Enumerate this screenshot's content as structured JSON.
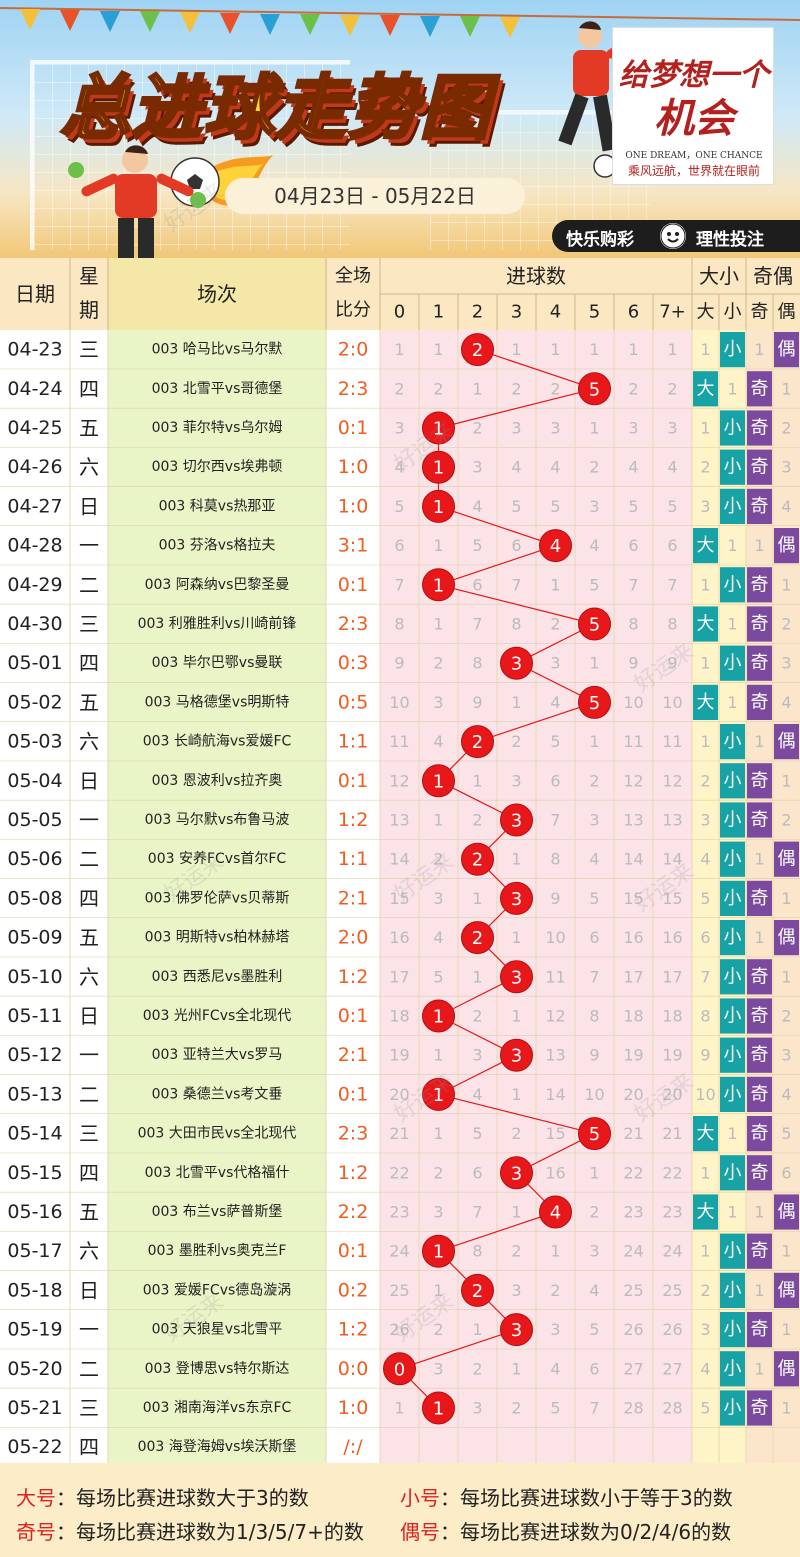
{
  "header": {
    "title": "总进球走势图",
    "date_range": "04月23日 - 05月22日",
    "promo_line1": "给梦想一个",
    "promo_line2": "机会",
    "promo_en": "ONE DREAM，ONE CHANCE",
    "promo_cn": "乘风远航，世界就在眼前",
    "slogan_left": "快乐购彩",
    "slogan_right": "理性投注",
    "watermark": "好运来"
  },
  "colors": {
    "ball_red": "#e8171a",
    "line_red": "#e8171a",
    "big_teal": "#17a3a6",
    "odd_purple": "#7b4a9e",
    "even_purple": "#7b4a9e",
    "match_green": "#e9f5c7",
    "score_orange": "#f25c1e",
    "grid_pink": "#fbe3e8",
    "header_bg": "#fbe8c2"
  },
  "table_headers": {
    "date": "日期",
    "weekday": "星期",
    "match": "场次",
    "score": "全场比分",
    "goals_group": "进球数",
    "goal_cols": [
      "0",
      "1",
      "2",
      "3",
      "4",
      "5",
      "6",
      "7+"
    ],
    "bigsmall_group": "大小",
    "bigsmall_cols": [
      "大",
      "小"
    ],
    "oddeven_group": "奇偶",
    "oddeven_cols": [
      "奇",
      "偶"
    ]
  },
  "chart_data": {
    "type": "table",
    "title": "总进球走势图",
    "columns": [
      "日期",
      "星期",
      "场次",
      "全场比分",
      "0",
      "1",
      "2",
      "3",
      "4",
      "5",
      "6",
      "7+",
      "大",
      "小",
      "奇",
      "偶"
    ],
    "rows": [
      {
        "date": "04-23",
        "weekday": "三",
        "match": "003 哈马比vs马尔默",
        "score": "2:0",
        "goals": 2,
        "omit": [
          1,
          1,
          null,
          1,
          1,
          1,
          1,
          1
        ],
        "bs": "小",
        "oe": "偶",
        "omit_bs": [
          1,
          null
        ],
        "omit_oe": [
          1,
          null
        ]
      },
      {
        "date": "04-24",
        "weekday": "四",
        "match": "003 北雪平vs哥德堡",
        "score": "2:3",
        "goals": 5,
        "omit": [
          2,
          2,
          1,
          2,
          2,
          null,
          2,
          2
        ],
        "bs": "大",
        "oe": "奇",
        "omit_bs": [
          null,
          1
        ],
        "omit_oe": [
          null,
          1
        ]
      },
      {
        "date": "04-25",
        "weekday": "五",
        "match": "003 菲尔特vs乌尔姆",
        "score": "0:1",
        "goals": 1,
        "omit": [
          3,
          null,
          2,
          3,
          3,
          1,
          3,
          3
        ],
        "bs": "小",
        "oe": "奇",
        "omit_bs": [
          1,
          null
        ],
        "omit_oe": [
          null,
          2
        ]
      },
      {
        "date": "04-26",
        "weekday": "六",
        "match": "003 切尔西vs埃弗顿",
        "score": "1:0",
        "goals": 1,
        "omit": [
          4,
          null,
          3,
          4,
          4,
          2,
          4,
          4
        ],
        "bs": "小",
        "oe": "奇",
        "omit_bs": [
          2,
          null
        ],
        "omit_oe": [
          null,
          3
        ]
      },
      {
        "date": "04-27",
        "weekday": "日",
        "match": "003 科莫vs热那亚",
        "score": "1:0",
        "goals": 1,
        "omit": [
          5,
          null,
          4,
          5,
          5,
          3,
          5,
          5
        ],
        "bs": "小",
        "oe": "奇",
        "omit_bs": [
          3,
          null
        ],
        "omit_oe": [
          null,
          4
        ]
      },
      {
        "date": "04-28",
        "weekday": "一",
        "match": "003 芬洛vs格拉夫",
        "score": "3:1",
        "goals": 4,
        "omit": [
          6,
          1,
          5,
          6,
          null,
          4,
          6,
          6
        ],
        "bs": "大",
        "oe": "偶",
        "omit_bs": [
          null,
          1
        ],
        "omit_oe": [
          1,
          null
        ]
      },
      {
        "date": "04-29",
        "weekday": "二",
        "match": "003 阿森纳vs巴黎圣曼",
        "score": "0:1",
        "goals": 1,
        "omit": [
          7,
          null,
          6,
          7,
          1,
          5,
          7,
          7
        ],
        "bs": "小",
        "oe": "奇",
        "omit_bs": [
          1,
          null
        ],
        "omit_oe": [
          null,
          1
        ]
      },
      {
        "date": "04-30",
        "weekday": "三",
        "match": "003 利雅胜利vs川崎前锋",
        "score": "2:3",
        "goals": 5,
        "omit": [
          8,
          1,
          7,
          8,
          2,
          null,
          8,
          8
        ],
        "bs": "大",
        "oe": "奇",
        "omit_bs": [
          null,
          1
        ],
        "omit_oe": [
          null,
          2
        ]
      },
      {
        "date": "05-01",
        "weekday": "四",
        "match": "003 毕尔巴鄂vs曼联",
        "score": "0:3",
        "goals": 3,
        "omit": [
          9,
          2,
          8,
          null,
          3,
          1,
          9,
          9
        ],
        "bs": "小",
        "oe": "奇",
        "omit_bs": [
          1,
          null
        ],
        "omit_oe": [
          null,
          3
        ]
      },
      {
        "date": "05-02",
        "weekday": "五",
        "match": "003 马格德堡vs明斯特",
        "score": "0:5",
        "goals": 5,
        "omit": [
          10,
          3,
          9,
          1,
          4,
          null,
          10,
          10
        ],
        "bs": "大",
        "oe": "奇",
        "omit_bs": [
          null,
          1
        ],
        "omit_oe": [
          null,
          4
        ]
      },
      {
        "date": "05-03",
        "weekday": "六",
        "match": "003 长崎航海vs爱媛FC",
        "score": "1:1",
        "goals": 2,
        "omit": [
          11,
          4,
          null,
          2,
          5,
          1,
          11,
          11
        ],
        "bs": "小",
        "oe": "偶",
        "omit_bs": [
          1,
          null
        ],
        "omit_oe": [
          1,
          null
        ]
      },
      {
        "date": "05-04",
        "weekday": "日",
        "match": "003 恩波利vs拉齐奥",
        "score": "0:1",
        "goals": 1,
        "omit": [
          12,
          null,
          1,
          3,
          6,
          2,
          12,
          12
        ],
        "bs": "小",
        "oe": "奇",
        "omit_bs": [
          2,
          null
        ],
        "omit_oe": [
          null,
          1
        ]
      },
      {
        "date": "05-05",
        "weekday": "一",
        "match": "003 马尔默vs布鲁马波",
        "score": "1:2",
        "goals": 3,
        "omit": [
          13,
          1,
          2,
          null,
          7,
          3,
          13,
          13
        ],
        "bs": "小",
        "oe": "奇",
        "omit_bs": [
          3,
          null
        ],
        "omit_oe": [
          null,
          2
        ]
      },
      {
        "date": "05-06",
        "weekday": "二",
        "match": "003 安养FCvs首尔FC",
        "score": "1:1",
        "goals": 2,
        "omit": [
          14,
          2,
          null,
          1,
          8,
          4,
          14,
          14
        ],
        "bs": "小",
        "oe": "偶",
        "omit_bs": [
          4,
          null
        ],
        "omit_oe": [
          1,
          null
        ]
      },
      {
        "date": "05-08",
        "weekday": "四",
        "match": "003 佛罗伦萨vs贝蒂斯",
        "score": "2:1",
        "goals": 3,
        "omit": [
          15,
          3,
          1,
          null,
          9,
          5,
          15,
          15
        ],
        "bs": "小",
        "oe": "奇",
        "omit_bs": [
          5,
          null
        ],
        "omit_oe": [
          null,
          1
        ]
      },
      {
        "date": "05-09",
        "weekday": "五",
        "match": "003 明斯特vs柏林赫塔",
        "score": "2:0",
        "goals": 2,
        "omit": [
          16,
          4,
          null,
          1,
          10,
          6,
          16,
          16
        ],
        "bs": "小",
        "oe": "偶",
        "omit_bs": [
          6,
          null
        ],
        "omit_oe": [
          1,
          null
        ]
      },
      {
        "date": "05-10",
        "weekday": "六",
        "match": "003 西悉尼vs墨胜利",
        "score": "1:2",
        "goals": 3,
        "omit": [
          17,
          5,
          1,
          null,
          11,
          7,
          17,
          17
        ],
        "bs": "小",
        "oe": "奇",
        "omit_bs": [
          7,
          null
        ],
        "omit_oe": [
          null,
          1
        ]
      },
      {
        "date": "05-11",
        "weekday": "日",
        "match": "003 光州FCvs全北现代",
        "score": "0:1",
        "goals": 1,
        "omit": [
          18,
          null,
          2,
          1,
          12,
          8,
          18,
          18
        ],
        "bs": "小",
        "oe": "奇",
        "omit_bs": [
          8,
          null
        ],
        "omit_oe": [
          null,
          2
        ]
      },
      {
        "date": "05-12",
        "weekday": "一",
        "match": "003 亚特兰大vs罗马",
        "score": "2:1",
        "goals": 3,
        "omit": [
          19,
          1,
          3,
          null,
          13,
          9,
          19,
          19
        ],
        "bs": "小",
        "oe": "奇",
        "omit_bs": [
          9,
          null
        ],
        "omit_oe": [
          null,
          3
        ]
      },
      {
        "date": "05-13",
        "weekday": "二",
        "match": "003 桑德兰vs考文垂",
        "score": "0:1",
        "goals": 1,
        "omit": [
          20,
          null,
          4,
          1,
          14,
          10,
          20,
          20
        ],
        "bs": "小",
        "oe": "奇",
        "omit_bs": [
          10,
          null
        ],
        "omit_oe": [
          null,
          4
        ]
      },
      {
        "date": "05-14",
        "weekday": "三",
        "match": "003 大田市民vs全北现代",
        "score": "2:3",
        "goals": 5,
        "omit": [
          21,
          1,
          5,
          2,
          15,
          null,
          21,
          21
        ],
        "bs": "大",
        "oe": "奇",
        "omit_bs": [
          null,
          1
        ],
        "omit_oe": [
          null,
          5
        ]
      },
      {
        "date": "05-15",
        "weekday": "四",
        "match": "003 北雪平vs代格福什",
        "score": "1:2",
        "goals": 3,
        "omit": [
          22,
          2,
          6,
          null,
          16,
          1,
          22,
          22
        ],
        "bs": "小",
        "oe": "奇",
        "omit_bs": [
          1,
          null
        ],
        "omit_oe": [
          null,
          6
        ]
      },
      {
        "date": "05-16",
        "weekday": "五",
        "match": "003 布兰vs萨普斯堡",
        "score": "2:2",
        "goals": 4,
        "omit": [
          23,
          3,
          7,
          1,
          null,
          2,
          23,
          23
        ],
        "bs": "大",
        "oe": "偶",
        "omit_bs": [
          null,
          1
        ],
        "omit_oe": [
          1,
          null
        ]
      },
      {
        "date": "05-17",
        "weekday": "六",
        "match": "003 墨胜利vs奥克兰F",
        "score": "0:1",
        "goals": 1,
        "omit": [
          24,
          null,
          8,
          2,
          1,
          3,
          24,
          24
        ],
        "bs": "小",
        "oe": "奇",
        "omit_bs": [
          1,
          null
        ],
        "omit_oe": [
          null,
          1
        ]
      },
      {
        "date": "05-18",
        "weekday": "日",
        "match": "003 爱媛FCvs德岛漩涡",
        "score": "0:2",
        "goals": 2,
        "omit": [
          25,
          1,
          null,
          3,
          2,
          4,
          25,
          25
        ],
        "bs": "小",
        "oe": "偶",
        "omit_bs": [
          2,
          null
        ],
        "omit_oe": [
          1,
          null
        ]
      },
      {
        "date": "05-19",
        "weekday": "一",
        "match": "003 天狼星vs北雪平",
        "score": "1:2",
        "goals": 3,
        "omit": [
          26,
          2,
          1,
          null,
          3,
          5,
          26,
          26
        ],
        "bs": "小",
        "oe": "奇",
        "omit_bs": [
          3,
          null
        ],
        "omit_oe": [
          null,
          1
        ]
      },
      {
        "date": "05-20",
        "weekday": "二",
        "match": "003 登博思vs特尔斯达",
        "score": "0:0",
        "goals": 0,
        "omit": [
          null,
          3,
          2,
          1,
          4,
          6,
          27,
          27
        ],
        "bs": "小",
        "oe": "偶",
        "omit_bs": [
          4,
          null
        ],
        "omit_oe": [
          1,
          null
        ]
      },
      {
        "date": "05-21",
        "weekday": "三",
        "match": "003 湘南海洋vs东京FC",
        "score": "1:0",
        "goals": 1,
        "omit": [
          1,
          null,
          3,
          2,
          5,
          7,
          28,
          28
        ],
        "bs": "小",
        "oe": "奇",
        "omit_bs": [
          5,
          null
        ],
        "omit_oe": [
          null,
          1
        ]
      },
      {
        "date": "05-22",
        "weekday": "四",
        "match": "003 海登海姆vs埃沃斯堡",
        "score": "/:/",
        "goals": null,
        "omit": [
          null,
          null,
          null,
          null,
          null,
          null,
          null,
          null
        ],
        "bs": "",
        "oe": "",
        "omit_bs": [
          null,
          null
        ],
        "omit_oe": [
          null,
          null
        ]
      }
    ]
  },
  "legend": {
    "big_key": "大号",
    "big_text": "：每场比赛进球数大于3的数",
    "small_key": "小号",
    "small_text": "：每场比赛进球数小于等于3的数",
    "odd_key": "奇号",
    "odd_text": "：每场比赛进球数为1/3/5/7+的数",
    "even_key": "偶号",
    "even_text": "：每场比赛进球数为0/2/4/6的数"
  }
}
